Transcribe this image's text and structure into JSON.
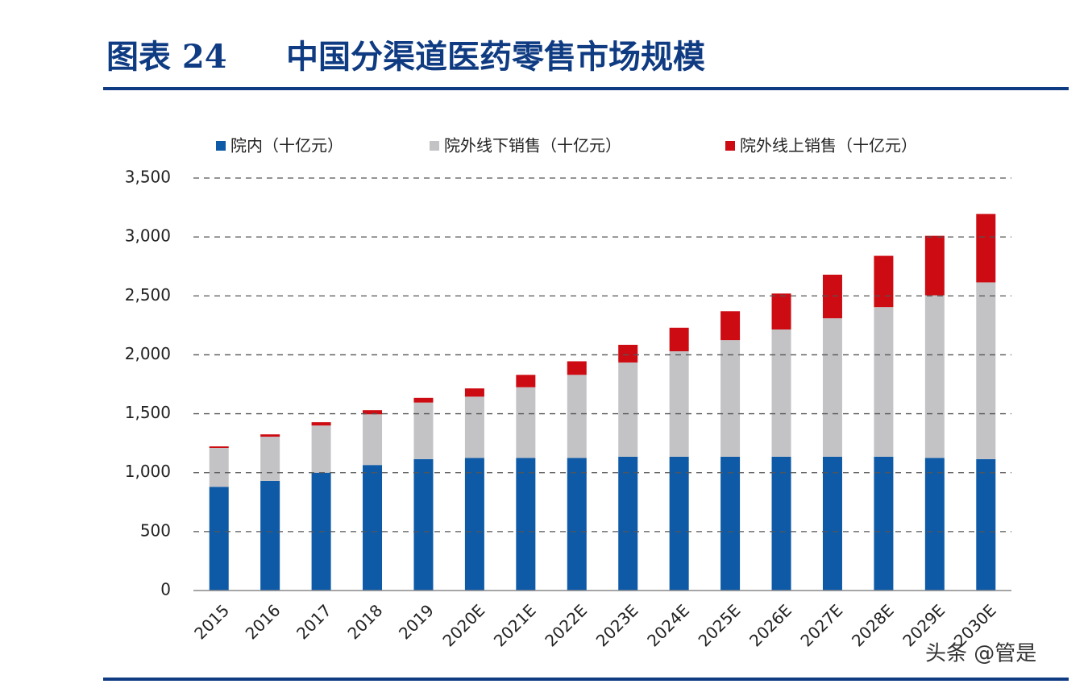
{
  "header": {
    "label": "图表 24",
    "title": "中国分渠道医药零售市场规模"
  },
  "watermark": "头条 @管是",
  "chart_data": {
    "type": "stacked-bar",
    "categories": [
      "2015",
      "2016",
      "2017",
      "2018",
      "2019",
      "2020E",
      "2021E",
      "2022E",
      "2023E",
      "2024E",
      "2025E",
      "2026E",
      "2027E",
      "2028E",
      "2029E",
      "2030E"
    ],
    "series": [
      {
        "name": "院内（十亿元）",
        "color": "#0e5aa7",
        "values": [
          880,
          930,
          1000,
          1065,
          1115,
          1125,
          1125,
          1125,
          1135,
          1135,
          1135,
          1135,
          1135,
          1135,
          1125,
          1115
        ]
      },
      {
        "name": "院外线下销售（十亿元）",
        "color": "#c3c3c6",
        "values": [
          330,
          375,
          400,
          430,
          480,
          520,
          600,
          705,
          800,
          895,
          990,
          1080,
          1175,
          1270,
          1380,
          1500
        ]
      },
      {
        "name": "院外线上销售（十亿元）",
        "color": "#cc0b12",
        "values": [
          13,
          20,
          28,
          35,
          40,
          70,
          105,
          115,
          150,
          200,
          245,
          305,
          370,
          435,
          505,
          580
        ]
      }
    ],
    "ylim": [
      0,
      3500
    ],
    "yticks": [
      0,
      500,
      {
        "value": 1000,
        "label": "1,000"
      },
      {
        "value": 1500,
        "label": "1,500"
      },
      {
        "value": 2000,
        "label": "2,000"
      },
      {
        "value": 2500,
        "label": "2,500"
      },
      {
        "value": 3000,
        "label": "3,000"
      },
      {
        "value": 3500,
        "label": "3,500"
      }
    ],
    "grid": true,
    "legend": "top"
  }
}
